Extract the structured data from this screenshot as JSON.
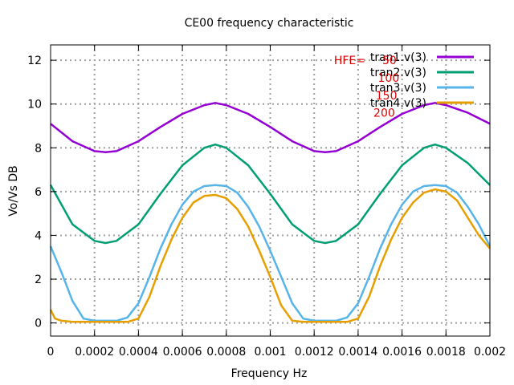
{
  "chart_data": {
    "type": "line",
    "title": "CE00 frequency characteristic",
    "xlabel": "Frequency Hz",
    "ylabel": "Vo/Vs DB",
    "xlim": [
      0,
      0.002
    ],
    "ylim": [
      -0.6,
      12.7
    ],
    "grid": true,
    "legend_position": "top-right",
    "x_ticks": [
      "0",
      "0.0002",
      "0.0004",
      "0.0006",
      "0.0008",
      "0.001",
      "0.0012",
      "0.0014",
      "0.0016",
      "0.0018",
      "0.002"
    ],
    "y_ticks": [
      "0",
      "2",
      "4",
      "6",
      "8",
      "10",
      "12"
    ],
    "annotations": [
      {
        "text": "HFE=",
        "x": 0.00129,
        "y": 12.0,
        "color": "#dd0000"
      },
      {
        "text": "50",
        "x": 0.00151,
        "y": 12.0,
        "color": "#dd0000"
      },
      {
        "text": "100",
        "x": 0.00149,
        "y": 11.2,
        "color": "#dd0000"
      },
      {
        "text": "150",
        "x": 0.00148,
        "y": 10.4,
        "color": "#dd0000"
      },
      {
        "text": "200",
        "x": 0.00147,
        "y": 9.6,
        "color": "#dd0000"
      }
    ],
    "series": [
      {
        "name": "tran1.v(3)",
        "color": "#9400d3",
        "x": [
          0,
          0.0001,
          0.0002,
          0.00025,
          0.0003,
          0.0004,
          0.0005,
          0.0006,
          0.0007,
          0.00075,
          0.0008,
          0.0009,
          0.001,
          0.0011,
          0.0012,
          0.00125,
          0.0013,
          0.0014,
          0.0015,
          0.0016,
          0.0017,
          0.00175,
          0.0018,
          0.0019,
          0.002
        ],
        "y": [
          9.1,
          8.3,
          7.85,
          7.8,
          7.85,
          8.3,
          8.95,
          9.55,
          9.95,
          10.05,
          9.95,
          9.55,
          8.95,
          8.3,
          7.85,
          7.8,
          7.85,
          8.3,
          8.95,
          9.55,
          9.95,
          10.05,
          9.95,
          9.6,
          9.1
        ]
      },
      {
        "name": "tran2.v(3)",
        "color": "#009e73",
        "x": [
          0,
          0.0001,
          0.0002,
          0.00025,
          0.0003,
          0.0004,
          0.0005,
          0.0006,
          0.0007,
          0.00075,
          0.0008,
          0.0009,
          0.001,
          0.0011,
          0.0012,
          0.00125,
          0.0013,
          0.0014,
          0.0015,
          0.0016,
          0.0017,
          0.00175,
          0.0018,
          0.0019,
          0.002
        ],
        "y": [
          6.3,
          4.5,
          3.75,
          3.65,
          3.75,
          4.5,
          5.9,
          7.2,
          8.0,
          8.15,
          8.0,
          7.2,
          5.9,
          4.5,
          3.75,
          3.65,
          3.75,
          4.5,
          5.9,
          7.2,
          8.0,
          8.15,
          8.0,
          7.3,
          6.3
        ]
      },
      {
        "name": "tran3.v(3)",
        "color": "#56b4e9",
        "x": [
          0,
          5e-05,
          0.0001,
          0.00015,
          0.0002,
          0.00025,
          0.0003,
          0.00035,
          0.0004,
          0.00045,
          0.0005,
          0.00055,
          0.0006,
          0.00065,
          0.0007,
          0.00075,
          0.0008,
          0.00085,
          0.0009,
          0.00095,
          0.001,
          0.00105,
          0.0011,
          0.00115,
          0.0012,
          0.00125,
          0.0013,
          0.00135,
          0.0014,
          0.00145,
          0.0015,
          0.00155,
          0.0016,
          0.00165,
          0.0017,
          0.00175,
          0.0018,
          0.00185,
          0.0019,
          0.00195,
          0.002
        ],
        "y": [
          3.5,
          2.3,
          1.0,
          0.2,
          0.1,
          0.1,
          0.1,
          0.25,
          0.9,
          2.1,
          3.4,
          4.5,
          5.4,
          6.0,
          6.25,
          6.3,
          6.25,
          5.95,
          5.3,
          4.4,
          3.3,
          2.1,
          0.9,
          0.2,
          0.1,
          0.1,
          0.1,
          0.25,
          0.9,
          2.1,
          3.4,
          4.5,
          5.4,
          6.0,
          6.25,
          6.3,
          6.25,
          5.95,
          5.3,
          4.5,
          3.5
        ]
      },
      {
        "name": "tran4.v(3)",
        "color": "#e69f00",
        "x": [
          0,
          2e-05,
          5e-05,
          0.0001,
          0.00015,
          0.0002,
          0.00025,
          0.0003,
          0.00035,
          0.0004,
          0.00045,
          0.0005,
          0.00055,
          0.0006,
          0.00065,
          0.0007,
          0.00075,
          0.0008,
          0.00085,
          0.0009,
          0.00095,
          0.001,
          0.00105,
          0.0011,
          0.00115,
          0.0012,
          0.00125,
          0.0013,
          0.00135,
          0.0014,
          0.00145,
          0.0015,
          0.00155,
          0.0016,
          0.00165,
          0.0017,
          0.00175,
          0.0018,
          0.00185,
          0.0019,
          0.00195,
          0.002
        ],
        "y": [
          0.6,
          0.2,
          0.1,
          0.05,
          0.05,
          0.05,
          0.05,
          0.05,
          0.05,
          0.2,
          1.2,
          2.6,
          3.8,
          4.8,
          5.5,
          5.8,
          5.85,
          5.7,
          5.2,
          4.4,
          3.3,
          2.1,
          0.8,
          0.1,
          0.05,
          0.05,
          0.05,
          0.05,
          0.05,
          0.2,
          1.2,
          2.6,
          3.8,
          4.8,
          5.5,
          5.95,
          6.1,
          6.0,
          5.6,
          4.8,
          4.0,
          3.4
        ]
      }
    ]
  }
}
